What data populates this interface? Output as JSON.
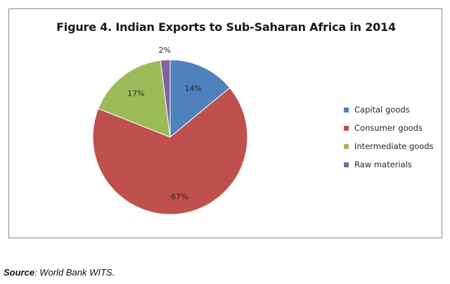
{
  "chart_data": {
    "type": "pie",
    "title": "Figure 4.  Indian Exports to Sub-Saharan Africa in 2014",
    "categories": [
      "Capital goods",
      "Consumer goods",
      "Intermediate goods",
      "Raw materials"
    ],
    "values": [
      14,
      67,
      17,
      2
    ],
    "value_labels": [
      "14%",
      "67%",
      "17%",
      "2%"
    ],
    "colors": [
      "#4f81bd",
      "#c0504d",
      "#9bbb59",
      "#8064a2"
    ],
    "legend": "right"
  },
  "source": {
    "label": "Source",
    "text": ": World Bank WITS."
  }
}
